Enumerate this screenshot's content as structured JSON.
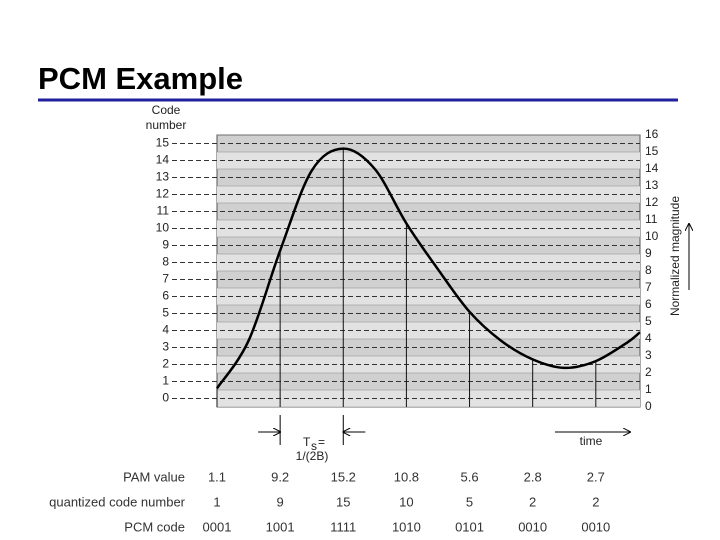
{
  "title": "PCM Example",
  "chart_data": {
    "type": "line",
    "y2_label_lines": [
      "Code",
      "number"
    ],
    "y_label": "Normalized magnitude",
    "x": [
      0,
      0.5,
      1,
      1.5,
      2,
      2.5,
      3,
      3.5,
      4,
      4.5,
      5,
      5.5,
      6,
      6.5,
      6.7
    ],
    "values": [
      1.1,
      3.9,
      9.2,
      13.9,
      15.2,
      14.0,
      10.8,
      8.1,
      5.6,
      3.9,
      2.8,
      2.3,
      2.7,
      3.8,
      4.4
    ],
    "color": "#000000",
    "sample_x": [
      0,
      1,
      2,
      3,
      4,
      5,
      6
    ],
    "xlim": [
      0,
      6.7
    ],
    "ylim": [
      0,
      16
    ],
    "yticks": [
      0,
      1,
      2,
      3,
      4,
      5,
      6,
      7,
      8,
      9,
      10,
      11,
      12,
      13,
      14,
      15,
      16
    ],
    "y2lim": [
      -0.5,
      15.5
    ],
    "y2ticks": [
      0,
      1,
      2,
      3,
      4,
      5,
      6,
      7,
      8,
      9,
      10,
      11,
      12,
      13,
      14,
      15
    ],
    "ts_symbol": "T",
    "ts_subscript": "s",
    "ts_equals": "=",
    "ts_formula": "1/(2B)",
    "time_label": "time"
  },
  "table": {
    "row_labels": [
      "PAM value",
      "quantized code number",
      "PCM code"
    ],
    "pam_values": [
      1.1,
      9.2,
      15.2,
      10.8,
      5.6,
      2.8,
      2.7
    ],
    "code_numbers": [
      1,
      9,
      15,
      10,
      5,
      2,
      2
    ],
    "pcm_codes": [
      "0001",
      "1001",
      "1111",
      "1010",
      "0101",
      "0010",
      "0010"
    ]
  }
}
